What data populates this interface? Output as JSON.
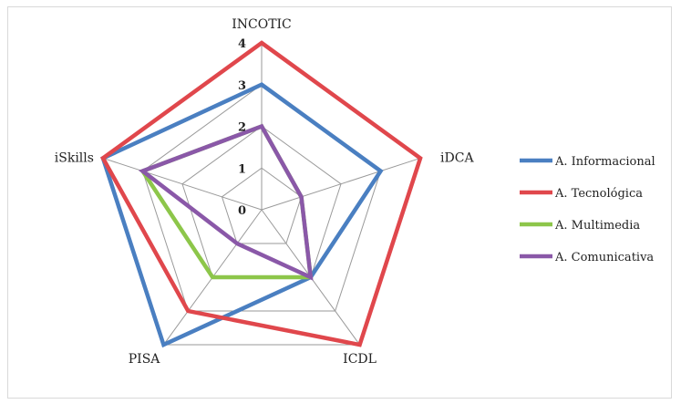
{
  "chart_data": {
    "type": "radar",
    "categories": [
      "INCOTIC",
      "iDCA",
      "ICDL",
      "PISA",
      "iSkills"
    ],
    "rlim": [
      0,
      4
    ],
    "ticks": [
      "0",
      "1",
      "2",
      "3",
      "4"
    ],
    "grid": true,
    "legend_position": "right",
    "series": [
      {
        "name": "A. Informacional",
        "color": "#4a7fc1",
        "values": [
          3,
          3,
          2,
          4,
          4
        ]
      },
      {
        "name": "A. Tecnológica",
        "color": "#e0474c",
        "values": [
          4,
          4,
          4,
          3,
          4
        ]
      },
      {
        "name": "A. Multimedia",
        "color": "#8dc64a",
        "values": [
          2,
          1,
          2,
          2,
          3
        ]
      },
      {
        "name": "A. Comunicativa",
        "color": "#8a58a8",
        "values": [
          2,
          1,
          2,
          1,
          3
        ]
      }
    ]
  }
}
